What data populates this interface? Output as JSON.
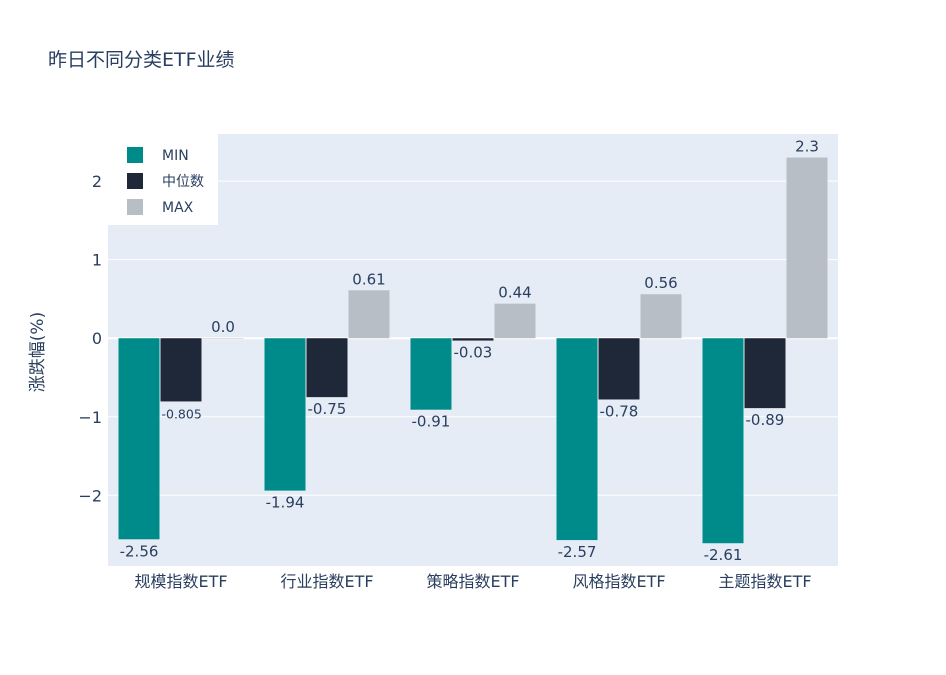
{
  "chart_data": {
    "type": "bar",
    "title": "昨日不同分类ETF业绩",
    "xlabel": "",
    "ylabel": "涨跌幅(%)",
    "ylim": [
      -2.9,
      2.6
    ],
    "yticks": [
      -2,
      -1,
      0,
      1,
      2
    ],
    "ytick_labels": [
      "−2",
      "−1",
      "0",
      "1",
      "2"
    ],
    "grid": true,
    "legend_position": "top-left",
    "categories": [
      "规模指数ETF",
      "行业指数ETF",
      "策略指数ETF",
      "风格指数ETF",
      "主题指数ETF"
    ],
    "series": [
      {
        "name": "MIN",
        "color": "#008b8b",
        "values": [
          -2.56,
          -1.94,
          -0.91,
          -2.57,
          -2.61
        ],
        "labels": [
          "-2.56",
          "-1.94",
          "-0.91",
          "-2.57",
          "-2.61"
        ]
      },
      {
        "name": "中位数",
        "color": "#1f2839",
        "values": [
          -0.805,
          -0.75,
          -0.03,
          -0.78,
          -0.89
        ],
        "labels": [
          "-0.805",
          "-0.75",
          "-0.03",
          "-0.78",
          "-0.89"
        ]
      },
      {
        "name": "MAX",
        "color": "#b8bec6",
        "values": [
          0.0,
          0.61,
          0.44,
          0.56,
          2.3
        ],
        "labels": [
          "0.0",
          "0.61",
          "0.44",
          "0.56",
          "2.3"
        ]
      }
    ]
  }
}
